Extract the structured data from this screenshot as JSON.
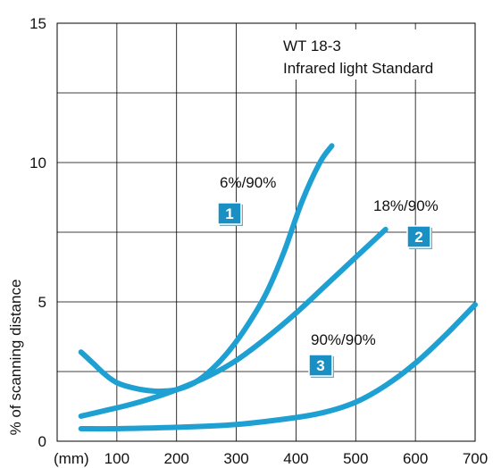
{
  "chart_data": {
    "type": "line",
    "title": "WT 18-3",
    "subtitle": "Infrared light Standard",
    "xlabel": "",
    "x_unit_label": "(mm)",
    "ylabel": "% of scanning distance",
    "xlim": [
      0,
      700
    ],
    "ylim": [
      0,
      15
    ],
    "x_ticks": [
      100,
      200,
      300,
      400,
      500,
      600,
      700
    ],
    "y_ticks": [
      0,
      5,
      10,
      15
    ],
    "grid": true,
    "line_color": "#1ea0d2",
    "badge_color": "#1a8fc4",
    "series": [
      {
        "name": "6%/90%",
        "badge": "1",
        "x": [
          40,
          60,
          80,
          100,
          130,
          160,
          180,
          200,
          230,
          260,
          290,
          320,
          350,
          380,
          410,
          440,
          460
        ],
        "y": [
          3.2,
          2.8,
          2.4,
          2.1,
          1.9,
          1.8,
          1.8,
          1.85,
          2.1,
          2.6,
          3.3,
          4.2,
          5.3,
          6.8,
          8.6,
          10.0,
          10.6
        ]
      },
      {
        "name": "18%/90%",
        "badge": "2",
        "x": [
          40,
          80,
          120,
          160,
          200,
          250,
          300,
          350,
          400,
          450,
          500,
          550
        ],
        "y": [
          0.9,
          1.1,
          1.3,
          1.55,
          1.85,
          2.3,
          2.9,
          3.7,
          4.6,
          5.6,
          6.6,
          7.6
        ]
      },
      {
        "name": "90%/90%",
        "badge": "3",
        "x": [
          40,
          100,
          200,
          300,
          400,
          450,
          500,
          550,
          600,
          650,
          700
        ],
        "y": [
          0.45,
          0.45,
          0.5,
          0.6,
          0.85,
          1.05,
          1.4,
          2.0,
          2.8,
          3.8,
          4.9
        ]
      }
    ]
  }
}
